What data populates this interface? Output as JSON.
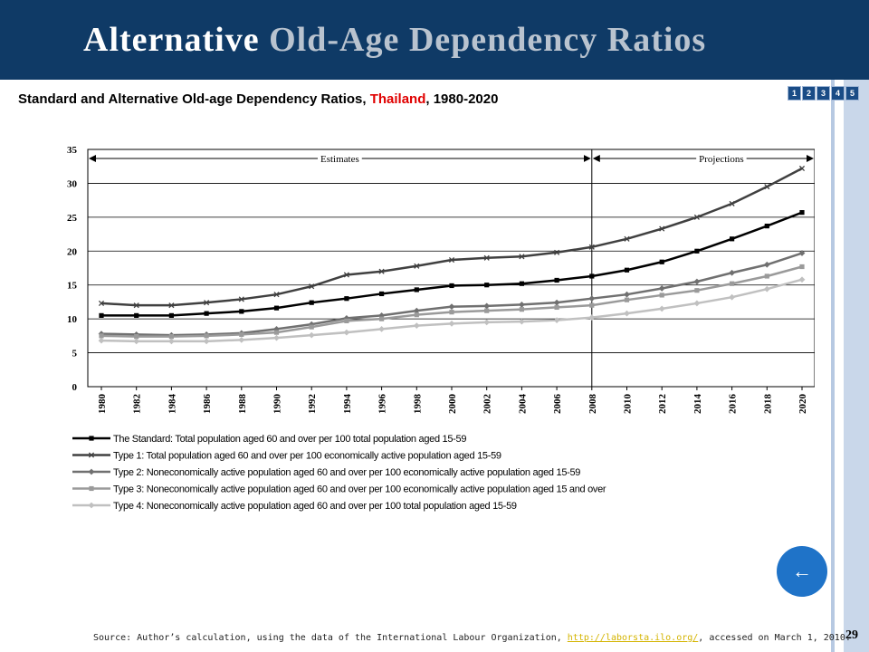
{
  "header": {
    "title_part1": "Alternative",
    "title_part2": "Old-Age Dependency Ratios"
  },
  "nav": [
    "1",
    "2",
    "3",
    "4",
    "5"
  ],
  "subtitle": {
    "before": "Standard and Alternative Old-age Dependency Ratios, ",
    "country": "Thailand",
    "after": ", 1980-2020"
  },
  "chart_data": {
    "type": "line",
    "x": [
      1980,
      1982,
      1984,
      1986,
      1988,
      1990,
      1992,
      1994,
      1996,
      1998,
      2000,
      2002,
      2004,
      2006,
      2008,
      2010,
      2012,
      2014,
      2016,
      2018,
      2020
    ],
    "series": [
      {
        "name": "The Standard: Total population aged 60 and over per 100 total population aged 15-59",
        "color": "#000000",
        "marker": "square",
        "values": [
          10.5,
          10.5,
          10.5,
          10.8,
          11.1,
          11.6,
          12.4,
          13.0,
          13.7,
          14.3,
          14.9,
          15.0,
          15.2,
          15.7,
          16.3,
          17.2,
          18.4,
          20.0,
          21.8,
          23.7,
          25.7
        ]
      },
      {
        "name": "Type 1: Total population aged 60 and over per 100 economically active population aged 15-59",
        "color": "#404040",
        "marker": "cross",
        "values": [
          12.3,
          12.0,
          12.0,
          12.4,
          12.9,
          13.6,
          14.8,
          16.5,
          17.0,
          17.8,
          18.7,
          19.0,
          19.2,
          19.8,
          20.6,
          21.8,
          23.3,
          25.0,
          27.0,
          29.5,
          32.2
        ]
      },
      {
        "name": "Type 2: Noneconomically active population aged 60 and over per 100 economically active population aged 15-59",
        "color": "#707070",
        "marker": "diamond",
        "values": [
          7.8,
          7.7,
          7.6,
          7.7,
          7.9,
          8.5,
          9.2,
          10.1,
          10.5,
          11.2,
          11.8,
          11.9,
          12.1,
          12.4,
          13.0,
          13.6,
          14.5,
          15.5,
          16.8,
          18.0,
          19.7
        ]
      },
      {
        "name": "Type 3: Noneconomically active population aged 60 and over per 100 economically active population aged 15 and over",
        "color": "#9a9a9a",
        "marker": "square",
        "values": [
          7.5,
          7.4,
          7.4,
          7.5,
          7.7,
          8.0,
          8.8,
          9.7,
          10.0,
          10.6,
          11.0,
          11.2,
          11.4,
          11.7,
          12.0,
          12.8,
          13.5,
          14.2,
          15.2,
          16.3,
          17.7
        ]
      },
      {
        "name": "Type 4: Noneconomically active population aged 60 and over per 100 total population aged 15-59",
        "color": "#c0c0c0",
        "marker": "diamond",
        "values": [
          6.8,
          6.7,
          6.7,
          6.7,
          6.9,
          7.2,
          7.6,
          8.0,
          8.5,
          9.0,
          9.3,
          9.5,
          9.6,
          9.8,
          10.2,
          10.8,
          11.5,
          12.3,
          13.2,
          14.4,
          15.8
        ]
      }
    ],
    "xlim": [
      1980,
      2020
    ],
    "xticks": [
      1980,
      1982,
      1984,
      1986,
      1988,
      1990,
      1992,
      1994,
      1996,
      1998,
      2000,
      2002,
      2004,
      2006,
      2008,
      2010,
      2012,
      2014,
      2016,
      2018,
      2020
    ],
    "ylim": [
      0,
      35
    ],
    "yticks": [
      0,
      5,
      10,
      15,
      20,
      25,
      30,
      35
    ],
    "divider_x": 2008,
    "annotations": [
      "Estimates",
      "Projections"
    ]
  },
  "source": {
    "text": "Source: Author’s calculation, using the data of the International Labour Organization,",
    "link": "http://laborsta.ilo.org/",
    "after": ", accessed on March 1, 2010."
  },
  "page_number": "29"
}
